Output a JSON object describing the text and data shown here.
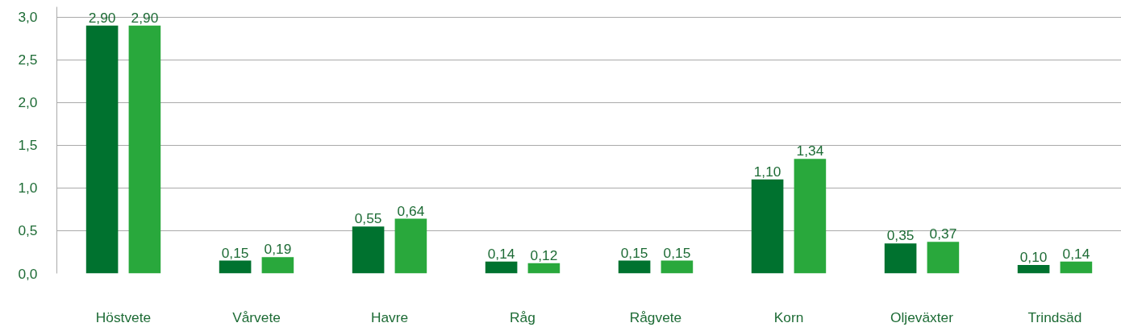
{
  "chart_data": {
    "type": "bar",
    "categories": [
      "Höstvete",
      "Vårvete",
      "Havre",
      "Råg",
      "Rågvete",
      "Korn",
      "Oljeväxter",
      "Trindsäd"
    ],
    "series": [
      {
        "color": "#00722f",
        "values": [
          2.9,
          0.15,
          0.55,
          0.14,
          0.15,
          1.1,
          0.35,
          0.1
        ],
        "value_labels": [
          "2,90",
          "0,15",
          "0,55",
          "0,14",
          "0,15",
          "1,10",
          "0,35",
          "0,10"
        ]
      },
      {
        "color": "#29a83c",
        "values": [
          2.9,
          0.19,
          0.64,
          0.12,
          0.15,
          1.34,
          0.37,
          0.14
        ],
        "value_labels": [
          "2,90",
          "0,19",
          "0,64",
          "0,12",
          "0,15",
          "1,34",
          "0,37",
          "0,14"
        ]
      }
    ],
    "ylim": [
      0,
      3.12
    ],
    "yticks": [
      {
        "value": 0,
        "label": "0,0"
      },
      {
        "value": 0.5,
        "label": "0,5"
      },
      {
        "value": 1,
        "label": "1,0"
      },
      {
        "value": 1.5,
        "label": "1,5"
      },
      {
        "value": 2,
        "label": "2,0"
      },
      {
        "value": 2.5,
        "label": "2,5"
      },
      {
        "value": 3,
        "label": "3,0"
      }
    ],
    "grid": "y"
  }
}
